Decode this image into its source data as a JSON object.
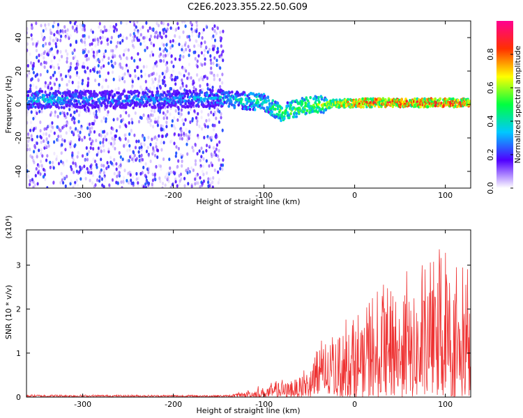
{
  "figure": {
    "title": "C2E6.2023.355.22.50.G09"
  },
  "chart_data": [
    {
      "type": "heatmap",
      "title": "",
      "xlabel": "Height of straight line (km)",
      "ylabel": "Frequency (Hz)",
      "xlim": [
        -362,
        128
      ],
      "ylim": [
        -50,
        50
      ],
      "xticks": [
        "-300",
        "-200",
        "-100",
        "0",
        "100"
      ],
      "xtick_values": [
        -300,
        -200,
        -100,
        0,
        100
      ],
      "yticks": [
        "-40",
        "-20",
        "0",
        "20",
        "40"
      ],
      "ytick_values": [
        -40,
        -20,
        0,
        20,
        40
      ],
      "colorbar": {
        "label": "Normalized spectral amplitude",
        "range": [
          0,
          1
        ],
        "ticks": [
          "0.0",
          "0.2",
          "0.4",
          "0.6",
          "0.8"
        ],
        "tick_values": [
          0,
          0.2,
          0.4,
          0.6,
          0.8
        ],
        "colors": [
          "#ffffff",
          "#5000ff",
          "#00c8ff",
          "#00ff40",
          "#ffff00",
          "#ff3000",
          "#ff0090"
        ]
      },
      "noise_region": {
        "x": [
          -362,
          -145
        ],
        "frequency_spread": [
          -50,
          50
        ]
      },
      "signal_trace": [
        {
          "x": -362,
          "freq": 3,
          "amp": 0.45
        },
        {
          "x": -300,
          "freq": 3,
          "amp": 0.35
        },
        {
          "x": -200,
          "freq": 3,
          "amp": 0.35
        },
        {
          "x": -150,
          "freq": 4,
          "amp": 0.4
        },
        {
          "x": -100,
          "freq": 1,
          "amp": 0.55
        },
        {
          "x": -80,
          "freq": -5,
          "amp": 0.6
        },
        {
          "x": -50,
          "freq": 0,
          "amp": 0.65
        },
        {
          "x": -30,
          "freq": 0,
          "amp": 0.7
        },
        {
          "x": 0,
          "freq": 1,
          "amp": 0.85
        },
        {
          "x": 50,
          "freq": 1,
          "amp": 0.9
        },
        {
          "x": 100,
          "freq": 1,
          "amp": 0.9
        },
        {
          "x": 128,
          "freq": 1,
          "amp": 0.9
        }
      ]
    },
    {
      "type": "line",
      "title": "",
      "xlabel": "Height of straight line (km)",
      "ylabel": "SNR (10 * v/v)",
      "y_multiplier": "(x10⁴)",
      "xlim": [
        -362,
        128
      ],
      "ylim": [
        0,
        3.8
      ],
      "xticks": [
        "-300",
        "-200",
        "-100",
        "0",
        "100"
      ],
      "xtick_values": [
        -300,
        -200,
        -100,
        0,
        100
      ],
      "yticks": [
        "0",
        "1",
        "2",
        "3"
      ],
      "ytick_values": [
        0,
        1,
        2,
        3
      ],
      "series": [
        {
          "color": "#ee3030",
          "envelope": [
            {
              "x": -362,
              "max": 0.07
            },
            {
              "x": -200,
              "max": 0.06
            },
            {
              "x": -140,
              "max": 0.06
            },
            {
              "x": -120,
              "max": 0.15
            },
            {
              "x": -100,
              "max": 0.3
            },
            {
              "x": -80,
              "max": 0.4
            },
            {
              "x": -60,
              "max": 0.6
            },
            {
              "x": -40,
              "max": 1.2
            },
            {
              "x": -20,
              "max": 1.8
            },
            {
              "x": 0,
              "max": 1.9
            },
            {
              "x": 20,
              "max": 2.3
            },
            {
              "x": 40,
              "max": 2.8
            },
            {
              "x": 60,
              "max": 3.0
            },
            {
              "x": 80,
              "max": 3.1
            },
            {
              "x": 100,
              "max": 3.8
            },
            {
              "x": 115,
              "max": 3.2
            },
            {
              "x": 128,
              "max": 2.9
            }
          ]
        }
      ]
    }
  ]
}
